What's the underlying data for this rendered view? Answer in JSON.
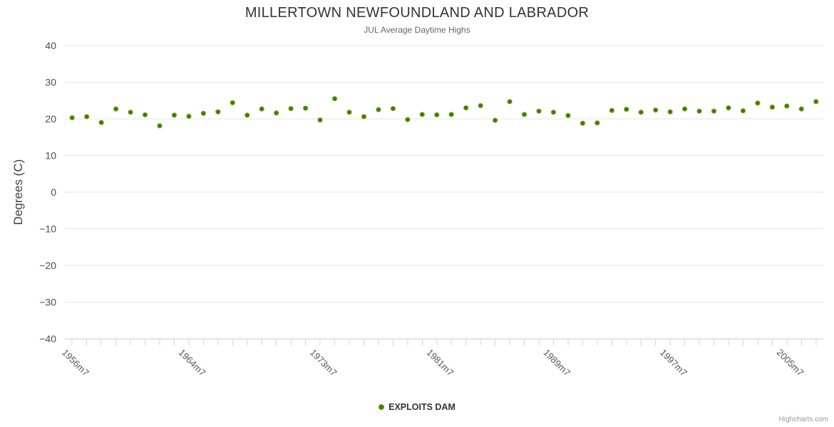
{
  "chart_data": {
    "type": "scatter",
    "title": "MILLERTOWN NEWFOUNDLAND AND LABRADOR",
    "subtitle": "JUL Average Daytime Highs",
    "xlabel": "",
    "ylabel": "Degrees (C)",
    "ylim": [
      -40,
      40
    ],
    "y_ticks": [
      40,
      30,
      20,
      10,
      0,
      -10,
      -20,
      -30,
      -40
    ],
    "grid": "horizontal-only",
    "legend_position": "bottom-center",
    "credits": "Highcharts.com",
    "colors": {
      "gridline": "#e6e6e6",
      "axis_line": "#ccd6eb",
      "y_label": "#4d4d4d",
      "x_label": "#555555",
      "marker": "#7db71f",
      "marker_center": "#42700c"
    },
    "categories": [
      "1956m7",
      "1957m7",
      "1958m7",
      "1959m7",
      "1960m7",
      "1961m7",
      "1962m7",
      "1963m7",
      "1964m7",
      "1965m7",
      "1966m7",
      "1967m7",
      "1968m7",
      "1969m7",
      "1970m7",
      "1971m7",
      "1972m7",
      "1973m7",
      "1974m7",
      "1975m7",
      "1976m7",
      "1977m7",
      "1978m7",
      "1979m7",
      "1980m7",
      "1981m7",
      "1982m7",
      "1983m7",
      "1984m7",
      "1985m7",
      "1986m7",
      "1987m7",
      "1988m7",
      "1989m7",
      "1990m7",
      "1991m7",
      "1992m7",
      "1993m7",
      "1994m7",
      "1995m7",
      "1996m7",
      "1997m7",
      "1998m7",
      "1999m7",
      "2000m7",
      "2001m7",
      "2002m7",
      "2003m7",
      "2004m7",
      "2005m7",
      "2006m7",
      "2007m7"
    ],
    "x_labeled_indexes": [
      0,
      8,
      17,
      25,
      33,
      41,
      49
    ],
    "x_tick_labels": [
      "1956m7",
      "1964m7",
      "1973m7",
      "1981m7",
      "1989m7",
      "1997m7",
      "2005m7"
    ],
    "series": [
      {
        "name": "EXPLOITS DAM",
        "values": [
          20.3,
          20.6,
          19.0,
          22.7,
          21.8,
          21.1,
          18.1,
          21.0,
          20.7,
          21.5,
          21.9,
          24.4,
          21.0,
          22.7,
          21.6,
          22.8,
          22.9,
          19.7,
          25.5,
          21.8,
          20.6,
          22.5,
          22.8,
          19.8,
          21.2,
          21.1,
          21.2,
          23.0,
          23.6,
          19.6,
          24.7,
          21.2,
          22.1,
          21.8,
          20.9,
          18.8,
          18.9,
          22.3,
          22.6,
          21.8,
          22.4,
          21.9,
          22.7,
          22.1,
          22.1,
          23.0,
          22.2,
          24.3,
          23.2,
          23.5,
          22.7,
          24.7
        ]
      }
    ]
  }
}
